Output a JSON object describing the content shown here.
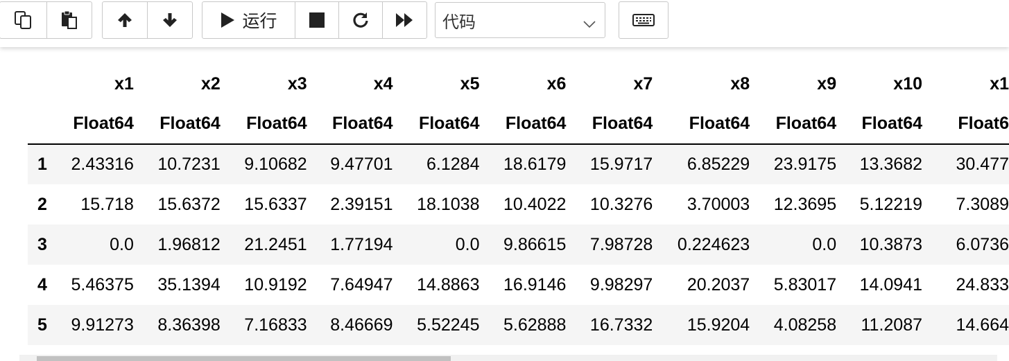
{
  "toolbar": {
    "run_label": "运行",
    "cell_type": "代码",
    "buttons": [
      {
        "icon": "copy-icon"
      },
      {
        "icon": "paste-icon"
      },
      {
        "icon": "arrow-up-icon"
      },
      {
        "icon": "arrow-down-icon"
      },
      {
        "icon": "play-icon"
      },
      {
        "icon": "stop-icon"
      },
      {
        "icon": "restart-icon"
      },
      {
        "icon": "fast-forward-icon"
      },
      {
        "icon": "keyboard-icon"
      }
    ]
  },
  "table": {
    "columns": [
      "x1",
      "x2",
      "x3",
      "x4",
      "x5",
      "x6",
      "x7",
      "x8",
      "x9",
      "x10",
      "x1"
    ],
    "types": [
      "Float64",
      "Float64",
      "Float64",
      "Float64",
      "Float64",
      "Float64",
      "Float64",
      "Float64",
      "Float64",
      "Float64",
      "Float6"
    ],
    "rows": [
      {
        "index": "1",
        "cells": [
          "2.43316",
          "10.7231",
          "9.10682",
          "9.47701",
          "6.1284",
          "18.6179",
          "15.9717",
          "6.85229",
          "23.9175",
          "13.3682",
          "30.477"
        ]
      },
      {
        "index": "2",
        "cells": [
          "15.718",
          "15.6372",
          "15.6337",
          "2.39151",
          "18.1038",
          "10.4022",
          "10.3276",
          "3.70003",
          "12.3695",
          "5.12219",
          "7.3089"
        ]
      },
      {
        "index": "3",
        "cells": [
          "0.0",
          "1.96812",
          "21.2451",
          "1.77194",
          "0.0",
          "9.86615",
          "7.98728",
          "0.224623",
          "0.0",
          "10.3873",
          "6.0736"
        ]
      },
      {
        "index": "4",
        "cells": [
          "5.46375",
          "35.1394",
          "10.9192",
          "7.64947",
          "14.8863",
          "16.9146",
          "9.98297",
          "20.2037",
          "5.83017",
          "14.0941",
          "24.833"
        ]
      },
      {
        "index": "5",
        "cells": [
          "9.91273",
          "8.36398",
          "7.16833",
          "8.46669",
          "5.52245",
          "5.62888",
          "16.7332",
          "15.9204",
          "4.08258",
          "11.2087",
          "14.664"
        ]
      }
    ]
  },
  "colors": {
    "border": "#c8c8c8",
    "stripe": "#f5f5f5",
    "scroll_thumb": "#c1c1c1"
  }
}
